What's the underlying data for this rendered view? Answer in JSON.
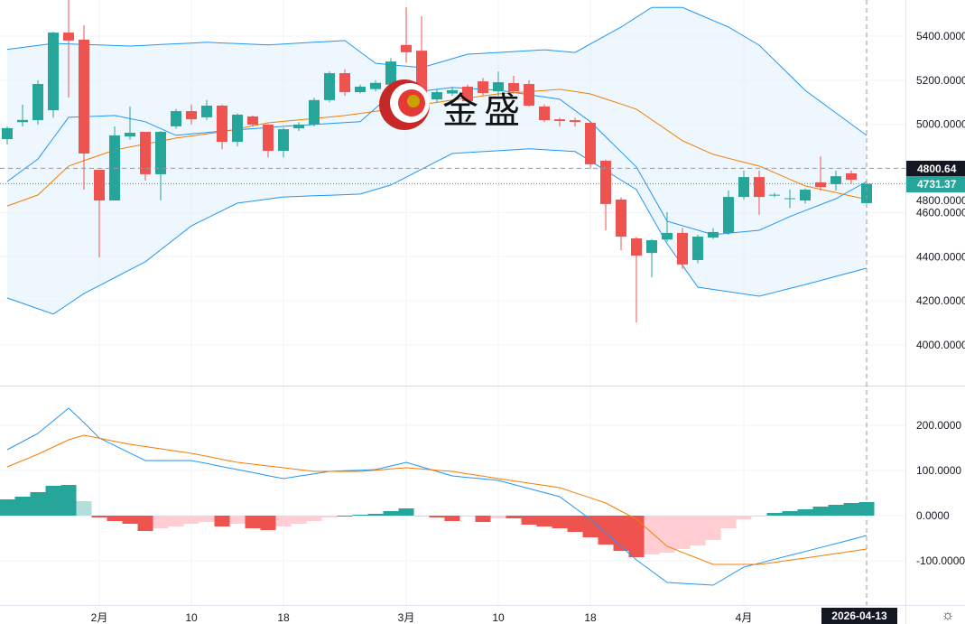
{
  "logo": {
    "text": "金盛"
  },
  "price_axis": {
    "labels": [
      "5400.0000",
      "5200.0000",
      "5000.0000",
      "4800.0000",
      "4600.0000",
      "4400.0000",
      "4200.0000",
      "4000.0000"
    ]
  },
  "macd_axis": {
    "labels": [
      "200.0000",
      "100.0000",
      "0.0000",
      "-100.0000"
    ]
  },
  "time_axis": {
    "labels": [
      {
        "text": "2月",
        "index": 6
      },
      {
        "text": "10",
        "index": 12
      },
      {
        "text": "18",
        "index": 18
      },
      {
        "text": "3月",
        "index": 26
      },
      {
        "text": "10",
        "index": 32
      },
      {
        "text": "18",
        "index": 38
      },
      {
        "text": "4月",
        "index": 48
      }
    ]
  },
  "crosshair": {
    "price_label": "4800.64",
    "price": 4800.64,
    "date_label": "2026-04-13",
    "index": 56
  },
  "last_price": {
    "label": "4731.37",
    "price": 4731.37
  },
  "colors": {
    "up": "#26a69a",
    "down": "#ef5350",
    "up_light": "#b2dfdb",
    "down_light": "#ffcdd2",
    "boll": "#2196f3",
    "ma": "#f57c00",
    "band_fill": "#e3f2fd"
  },
  "chart_data": [
    {
      "type": "candlestick",
      "title": "",
      "ylim": [
        3900,
        5560
      ],
      "x_range": "2026-01 to 2026-04-13",
      "ohlc": [
        [
          4933,
          4990,
          4909,
          4983
        ],
        [
          5010,
          5090,
          4990,
          5020
        ],
        [
          5019,
          5200,
          5000,
          5183
        ],
        [
          5064,
          5420,
          5030,
          5416
        ],
        [
          5416,
          5564,
          5122,
          5380
        ],
        [
          5384,
          5449,
          4704,
          4868
        ],
        [
          4794,
          4794,
          4397,
          4655
        ],
        [
          4655,
          4990,
          4655,
          4950
        ],
        [
          4945,
          5081,
          4930,
          4962
        ],
        [
          4966,
          4966,
          4745,
          4774
        ],
        [
          4774,
          4970,
          4655,
          4966
        ],
        [
          4991,
          5070,
          4980,
          5060
        ],
        [
          5060,
          5090,
          5000,
          5023
        ],
        [
          5032,
          5110,
          5020,
          5085
        ],
        [
          5085,
          5090,
          4888,
          4921
        ],
        [
          4921,
          5050,
          4900,
          5044
        ],
        [
          5036,
          5040,
          4990,
          4999
        ],
        [
          4999,
          5000,
          4850,
          4880
        ],
        [
          4880,
          4985,
          4850,
          4978
        ],
        [
          4982,
          5010,
          4970,
          4999
        ],
        [
          4999,
          5120,
          4990,
          5110
        ],
        [
          5110,
          5240,
          5100,
          5232
        ],
        [
          5232,
          5250,
          5130,
          5146
        ],
        [
          5146,
          5180,
          5140,
          5171
        ],
        [
          5160,
          5200,
          5150,
          5188
        ],
        [
          5180,
          5300,
          5170,
          5285
        ],
        [
          5360,
          5531,
          5280,
          5327
        ],
        [
          5334,
          5490,
          5060,
          5105
        ],
        [
          5113,
          5160,
          5100,
          5146
        ],
        [
          5140,
          5170,
          5130,
          5155
        ],
        [
          5171,
          5180,
          5100,
          5105
        ],
        [
          5195,
          5210,
          5130,
          5142
        ],
        [
          5150,
          5240,
          5130,
          5191
        ],
        [
          5187,
          5220,
          5140,
          5150
        ],
        [
          5183,
          5200,
          5080,
          5085
        ],
        [
          5081,
          5090,
          5010,
          5019
        ],
        [
          5023,
          5030,
          4990,
          5015
        ],
        [
          5019,
          5030,
          4990,
          5011
        ],
        [
          5007,
          5010,
          4800,
          4819
        ],
        [
          4835,
          4840,
          4520,
          4639
        ],
        [
          4659,
          4670,
          4430,
          4491
        ],
        [
          4483,
          4490,
          4102,
          4405
        ],
        [
          4417,
          4480,
          4307,
          4475
        ],
        [
          4478,
          4602,
          4470,
          4508
        ],
        [
          4508,
          4530,
          4344,
          4365
        ],
        [
          4385,
          4500,
          4370,
          4491
        ],
        [
          4487,
          4530,
          4480,
          4512
        ],
        [
          4508,
          4700,
          4500,
          4671
        ],
        [
          4671,
          4790,
          4660,
          4761
        ],
        [
          4761,
          4790,
          4590,
          4671
        ],
        [
          4680,
          4690,
          4670,
          4681
        ],
        [
          4663,
          4705,
          4620,
          4665
        ],
        [
          4655,
          4710,
          4640,
          4704
        ],
        [
          4737,
          4855,
          4700,
          4716
        ],
        [
          4729,
          4790,
          4700,
          4765
        ],
        [
          4778,
          4790,
          4730,
          4749
        ],
        [
          4643,
          4735,
          4640,
          4731
        ]
      ],
      "boll_upper": [
        [
          0,
          5340
        ],
        [
          3,
          5367
        ],
        [
          8,
          5355
        ],
        [
          13,
          5372
        ],
        [
          17,
          5360
        ],
        [
          22,
          5380
        ],
        [
          24,
          5277
        ],
        [
          27,
          5257
        ],
        [
          30,
          5318
        ],
        [
          35,
          5338
        ],
        [
          37,
          5326
        ],
        [
          40,
          5441
        ],
        [
          42,
          5530
        ],
        [
          44,
          5530
        ],
        [
          47,
          5441
        ],
        [
          49,
          5359
        ],
        [
          52,
          5154
        ],
        [
          56,
          4950
        ]
      ],
      "boll_mid": [
        [
          0,
          4741
        ],
        [
          2,
          4843
        ],
        [
          4,
          5032
        ],
        [
          7,
          5040
        ],
        [
          9,
          5012
        ],
        [
          11,
          4950
        ],
        [
          14,
          4970
        ],
        [
          18,
          4991
        ],
        [
          23,
          5012
        ],
        [
          25,
          5134
        ],
        [
          29,
          5167
        ],
        [
          32,
          5155
        ],
        [
          36,
          5114
        ],
        [
          38,
          5012
        ],
        [
          41,
          4807
        ],
        [
          43,
          4561
        ],
        [
          46,
          4500
        ],
        [
          49,
          4520
        ],
        [
          51,
          4582
        ],
        [
          54,
          4663
        ],
        [
          56,
          4741
        ]
      ],
      "boll_lower": [
        [
          0,
          4213
        ],
        [
          3,
          4140
        ],
        [
          5,
          4233
        ],
        [
          9,
          4377
        ],
        [
          12,
          4540
        ],
        [
          15,
          4643
        ],
        [
          18,
          4671
        ],
        [
          23,
          4684
        ],
        [
          25,
          4725
        ],
        [
          29,
          4868
        ],
        [
          34,
          4889
        ],
        [
          37,
          4877
        ],
        [
          41,
          4704
        ],
        [
          43,
          4459
        ],
        [
          45,
          4262
        ],
        [
          49,
          4221
        ],
        [
          52,
          4274
        ],
        [
          56,
          4348
        ]
      ],
      "ma": [
        [
          0,
          4630
        ],
        [
          2,
          4680
        ],
        [
          4,
          4811
        ],
        [
          7,
          4884
        ],
        [
          11,
          4938
        ],
        [
          14,
          4966
        ],
        [
          17,
          5007
        ],
        [
          22,
          5040
        ],
        [
          25,
          5069
        ],
        [
          29,
          5110
        ],
        [
          32,
          5138
        ],
        [
          36,
          5159
        ],
        [
          38,
          5138
        ],
        [
          41,
          5069
        ],
        [
          44,
          4926
        ],
        [
          46,
          4864
        ],
        [
          49,
          4811
        ],
        [
          52,
          4721
        ],
        [
          56,
          4660
        ]
      ]
    },
    {
      "type": "macd",
      "ylim": [
        -180,
        260
      ],
      "dif": [
        [
          0,
          146
        ],
        [
          2,
          182
        ],
        [
          4,
          238
        ],
        [
          5,
          206
        ],
        [
          6,
          172
        ],
        [
          9,
          122
        ],
        [
          12,
          122
        ],
        [
          15,
          102
        ],
        [
          18,
          82
        ],
        [
          21,
          98
        ],
        [
          24,
          102
        ],
        [
          26,
          118
        ],
        [
          29,
          88
        ],
        [
          32,
          78
        ],
        [
          36,
          42
        ],
        [
          38,
          -8
        ],
        [
          41,
          -98
        ],
        [
          43,
          -148
        ],
        [
          46,
          -154
        ],
        [
          48,
          -114
        ],
        [
          51,
          -88
        ],
        [
          54,
          -62
        ],
        [
          56,
          -44
        ]
      ],
      "dea": [
        [
          0,
          108
        ],
        [
          2,
          136
        ],
        [
          4,
          168
        ],
        [
          5,
          178
        ],
        [
          8,
          158
        ],
        [
          12,
          138
        ],
        [
          15,
          118
        ],
        [
          20,
          98
        ],
        [
          23,
          98
        ],
        [
          26,
          106
        ],
        [
          29,
          98
        ],
        [
          32,
          82
        ],
        [
          36,
          62
        ],
        [
          39,
          28
        ],
        [
          41,
          -8
        ],
        [
          43,
          -68
        ],
        [
          46,
          -108
        ],
        [
          49,
          -108
        ],
        [
          52,
          -94
        ],
        [
          56,
          -74
        ]
      ],
      "histogram": [
        36,
        42,
        52,
        66,
        68,
        32,
        -4,
        -12,
        -18,
        -34,
        -28,
        -24,
        -18,
        -14,
        -24,
        -18,
        -28,
        -32,
        -24,
        -18,
        -12,
        -4,
        0,
        2,
        4,
        10,
        16,
        0,
        -4,
        -12,
        -2,
        -14,
        -6,
        -6,
        -20,
        -24,
        -28,
        -36,
        -48,
        -64,
        -78,
        -92,
        -86,
        -82,
        -74,
        -66,
        -54,
        -28,
        -8,
        -2,
        6,
        10,
        14,
        20,
        24,
        28,
        30
      ]
    }
  ]
}
